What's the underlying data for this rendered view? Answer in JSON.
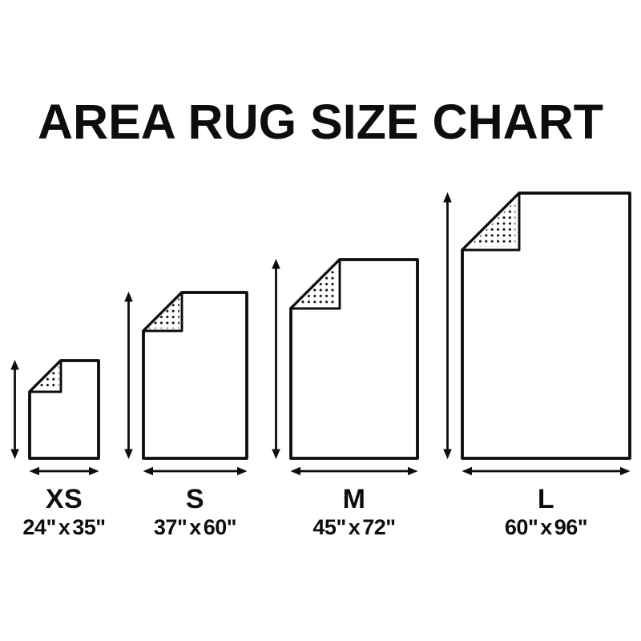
{
  "title": "AREA RUG SIZE CHART",
  "colors": {
    "ink": "#0d0d0d",
    "background": "#ffffff"
  },
  "icons": {
    "height_arrow": "double-headed-vertical-arrow",
    "width_arrow": "double-headed-horizontal-arrow",
    "fold_texture": "dotted-folded-corner"
  },
  "rugs": [
    {
      "code": "XS",
      "dimensions": "24\" x 35\"",
      "width_in": 24,
      "length_in": 35
    },
    {
      "code": "S",
      "dimensions": "37\" x 60\"",
      "width_in": 37,
      "length_in": 60
    },
    {
      "code": "M",
      "dimensions": "45\" x 72\"",
      "width_in": 45,
      "length_in": 72
    },
    {
      "code": "L",
      "dimensions": "60\" x 96\"",
      "width_in": 60,
      "length_in": 96
    }
  ]
}
